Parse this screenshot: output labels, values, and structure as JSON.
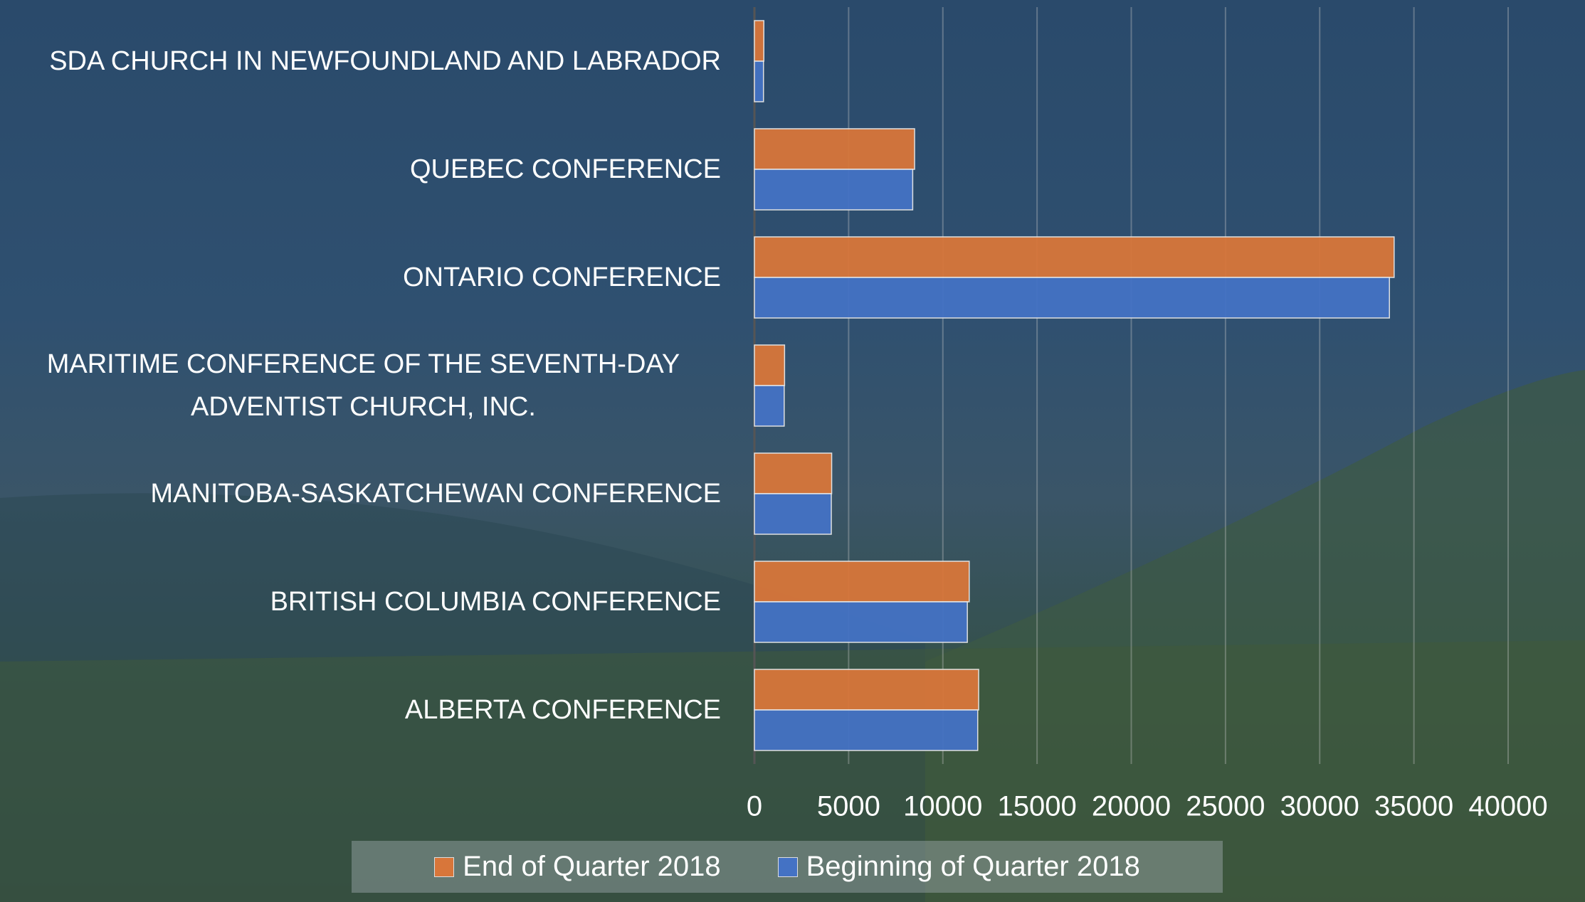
{
  "chart_data": {
    "type": "bar",
    "orientation": "horizontal",
    "categories": [
      "SDA CHURCH IN NEWFOUNDLAND AND LABRADOR",
      "QUEBEC CONFERENCE",
      "ONTARIO CONFERENCE",
      "MARITIME CONFERENCE OF THE SEVENTH-DAY ADVENTIST CHURCH, INC.",
      "MANITOBA-SASKATCHEWAN CONFERENCE",
      "BRITISH COLUMBIA CONFERENCE",
      "ALBERTA CONFERENCE"
    ],
    "series": [
      {
        "name": "End of Quarter 2018",
        "color": "#d8763a",
        "values": [
          500,
          8500,
          33950,
          1600,
          4100,
          11400,
          11900
        ]
      },
      {
        "name": "Beginning of Quarter 2018",
        "color": "#4472c4",
        "values": [
          480,
          8400,
          33700,
          1580,
          4080,
          11300,
          11850
        ]
      }
    ],
    "xlim": [
      0,
      40000
    ],
    "xticks": [
      0,
      5000,
      10000,
      15000,
      20000,
      25000,
      30000,
      35000,
      40000
    ],
    "grid": true,
    "legend": "bottom"
  }
}
